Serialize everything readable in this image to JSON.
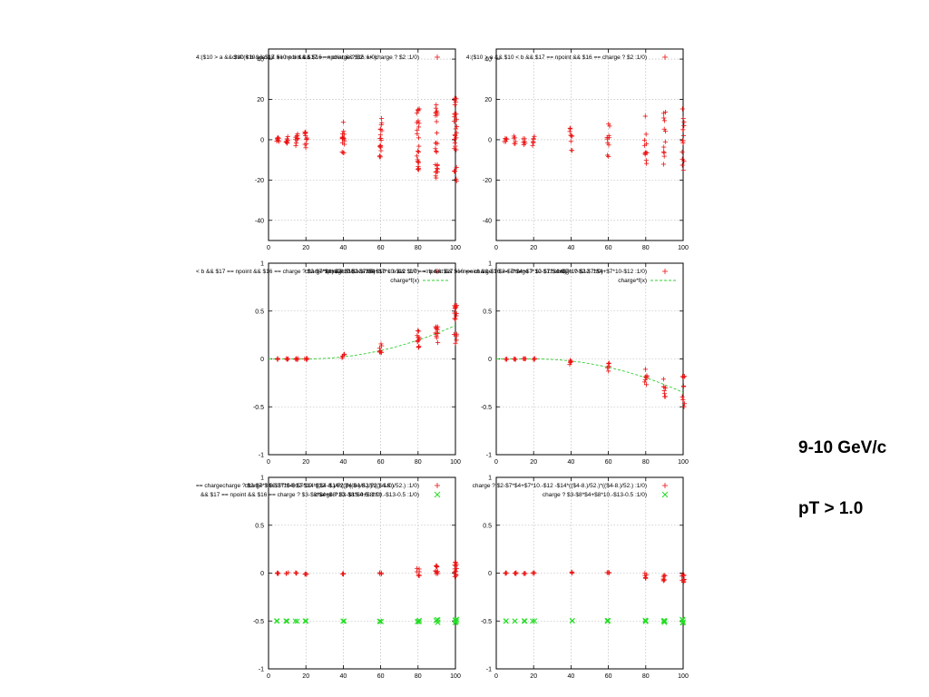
{
  "side_text": {
    "energy": "9-10 GeV/c",
    "pt_cut": "pT > 1.0"
  },
  "colors": {
    "series_plus": "#ee1111",
    "series_cross": "#22dd22",
    "fit_line": "#33cc33",
    "grid": "#b0b0b0",
    "frame": "#000000"
  },
  "chart_data": [
    {
      "type": "scatter",
      "xlim": [
        0,
        100
      ],
      "ylim": [
        -50,
        45
      ],
      "xticks": [
        0,
        20,
        40,
        60,
        80,
        100
      ],
      "yticks": [
        -40,
        -20,
        0,
        20,
        40
      ],
      "grid": true,
      "legend_overlay": "4:($10 > a && $10 < b && $17 == npoint && $16 == charge ? $2 :1/0)",
      "legend_label": "ch4:($10 > a && $10 < b && $17 == npoint && $16 == charge ? $2 :1/0)",
      "series": [
        {
          "marker": "plus",
          "clusters": [
            {
              "x": 5,
              "center": 0,
              "spread": 1,
              "n": 8
            },
            {
              "x": 10,
              "center": 0,
              "spread": 2,
              "n": 9
            },
            {
              "x": 15,
              "center": 0,
              "spread": 3,
              "n": 10
            },
            {
              "x": 20,
              "center": 0,
              "spread": 4,
              "n": 11
            },
            {
              "x": 40,
              "center": 0,
              "spread": 9,
              "n": 16
            },
            {
              "x": 60,
              "center": 0,
              "spread": 11,
              "n": 18
            },
            {
              "x": 80,
              "center": 0,
              "spread": 16,
              "n": 24
            },
            {
              "x": 90,
              "center": 0,
              "spread": 19,
              "n": 26
            },
            {
              "x": 100,
              "center": 0,
              "spread": 21,
              "n": 28
            }
          ]
        }
      ]
    },
    {
      "type": "scatter",
      "xlim": [
        0,
        100
      ],
      "ylim": [
        -50,
        45
      ],
      "xticks": [
        0,
        20,
        40,
        60,
        80,
        100
      ],
      "yticks": [
        -40,
        -20,
        0,
        20,
        40
      ],
      "grid": true,
      "legend_label": "4:($10 > a && $10 < b && $17 == npoint && $16 == charge ? $2 :1/0)",
      "series": [
        {
          "marker": "plus",
          "clusters": [
            {
              "x": 5,
              "center": 0,
              "spread": 1,
              "n": 5
            },
            {
              "x": 10,
              "center": 0,
              "spread": 2,
              "n": 6
            },
            {
              "x": 15,
              "center": 0,
              "spread": 2.5,
              "n": 6
            },
            {
              "x": 20,
              "center": 0,
              "spread": 3,
              "n": 7
            },
            {
              "x": 40,
              "center": 0,
              "spread": 7,
              "n": 9
            },
            {
              "x": 60,
              "center": 0,
              "spread": 9,
              "n": 10
            },
            {
              "x": 80,
              "center": 0,
              "spread": 12,
              "n": 12
            },
            {
              "x": 90,
              "center": 0,
              "spread": 14,
              "n": 12
            },
            {
              "x": 100,
              "center": 0,
              "spread": 16,
              "n": 14
            }
          ]
        }
      ]
    },
    {
      "type": "scatter",
      "xlim": [
        0,
        100
      ],
      "ylim": [
        -1,
        1
      ],
      "xticks": [
        0,
        20,
        40,
        60,
        80,
        100
      ],
      "yticks": [
        -1,
        -0.5,
        0,
        0.5,
        1
      ],
      "grid": true,
      "legend_overlay": "< b && $17 == npoint && $16 == charge ? $2-$7*$4+$7*10-$12 :1/0)",
      "legend_label": "charge ? $2-$7*$4+$7*10-$12 :1/0)",
      "legend_overlay_3": "charge*f(x) && $10 > a && $10 < b && $17 == npoint && $16 == charge ? $2-$7*$4+$7*10-$12 :1/0)",
      "fit_label": "charge*f(x)",
      "fit": {
        "sign": 1,
        "x0": 20,
        "scale": 0.35
      },
      "series": [
        {
          "marker": "plus",
          "clusters": [
            {
              "x": 5,
              "center": 0,
              "spread": 0.005,
              "n": 5
            },
            {
              "x": 10,
              "center": 0,
              "spread": 0.006,
              "n": 5
            },
            {
              "x": 15,
              "center": 0,
              "spread": 0.006,
              "n": 5
            },
            {
              "x": 20,
              "center": 0,
              "spread": 0.007,
              "n": 5
            },
            {
              "x": 40,
              "center": 0.03,
              "spread": 0.025,
              "n": 6
            },
            {
              "x": 60,
              "center": 0.1,
              "spread": 0.06,
              "n": 8
            },
            {
              "x": 80,
              "center": 0.21,
              "spread": 0.11,
              "n": 12
            },
            {
              "x": 90,
              "center": 0.28,
              "spread": 0.13,
              "n": 12
            },
            {
              "x": 100,
              "center": 0.36,
              "spread": 0.2,
              "n": 16
            }
          ]
        }
      ]
    },
    {
      "type": "scatter",
      "xlim": [
        0,
        100
      ],
      "ylim": [
        -1,
        1
      ],
      "xticks": [
        0,
        20,
        40,
        60,
        80,
        100
      ],
      "yticks": [
        -1,
        -0.5,
        0,
        0.5,
        1
      ],
      "grid": true,
      "legend_overlay": "< b && $17 == npoint && $16 == charge ? $2-$7*$4+$7*10-$12 :1/0)",
      "legend_label": "charge ? $2-$7*$4+$7*10-$12 :1/0)",
      "fit_label": "charge*f(x)",
      "fit": {
        "sign": -1,
        "x0": 20,
        "scale": 0.35
      },
      "series": [
        {
          "marker": "plus",
          "clusters": [
            {
              "x": 5,
              "center": 0,
              "spread": 0.005,
              "n": 4
            },
            {
              "x": 10,
              "center": 0,
              "spread": 0.006,
              "n": 4
            },
            {
              "x": 15,
              "center": 0,
              "spread": 0.006,
              "n": 4
            },
            {
              "x": 20,
              "center": 0,
              "spread": 0.007,
              "n": 4
            },
            {
              "x": 40,
              "center": -0.03,
              "spread": 0.03,
              "n": 5
            },
            {
              "x": 60,
              "center": -0.1,
              "spread": 0.06,
              "n": 6
            },
            {
              "x": 80,
              "center": -0.2,
              "spread": 0.1,
              "n": 8
            },
            {
              "x": 90,
              "center": -0.3,
              "spread": 0.16,
              "n": 9
            },
            {
              "x": 100,
              "center": -0.37,
              "spread": 0.22,
              "n": 10
            }
          ]
        }
      ]
    },
    {
      "type": "scatter",
      "xlim": [
        0,
        100
      ],
      "ylim": [
        -1,
        1
      ],
      "xticks": [
        0,
        20,
        40,
        60,
        80,
        100
      ],
      "yticks": [
        -1,
        -0.5,
        0,
        0.5,
        1
      ],
      "grid": true,
      "legend_overlay": "== chargecharge ? $2-$7*$4+$7*10-$12-$14*(($4-8.)/52.)*(($4-8.)/52.) :1/0)",
      "legend_label": "charge ? $2-$7*$4+$7*10.-$12 -$14*(($4-8.)/52.)*(($4-8.)/52.) :1/0)",
      "legend_overlay_2": "&& $17 == npoint && $16 == charge ? $3-$8*$4+$8*10.-$13-0.5 :1/0)",
      "legend_label_2": "charge ? $3-$8*$4+$8*10.-$13-0.5 :1/0)",
      "series": [
        {
          "marker": "plus",
          "clusters": [
            {
              "x": 5,
              "center": 0,
              "spread": 0.005,
              "n": 4
            },
            {
              "x": 10,
              "center": 0,
              "spread": 0.006,
              "n": 4
            },
            {
              "x": 15,
              "center": 0,
              "spread": 0.006,
              "n": 4
            },
            {
              "x": 20,
              "center": -0.01,
              "spread": 0.007,
              "n": 4
            },
            {
              "x": 40,
              "center": -0.01,
              "spread": 0.01,
              "n": 4
            },
            {
              "x": 60,
              "center": 0,
              "spread": 0.012,
              "n": 4
            },
            {
              "x": 80,
              "center": 0.01,
              "spread": 0.04,
              "n": 8
            },
            {
              "x": 90,
              "center": 0.02,
              "spread": 0.06,
              "n": 10
            },
            {
              "x": 100,
              "center": 0.04,
              "spread": 0.09,
              "n": 14
            }
          ]
        },
        {
          "marker": "cross",
          "clusters": [
            {
              "x": 5,
              "center": -0.5,
              "spread": 0.003,
              "n": 2
            },
            {
              "x": 10,
              "center": -0.5,
              "spread": 0.003,
              "n": 2
            },
            {
              "x": 15,
              "center": -0.5,
              "spread": 0.003,
              "n": 2
            },
            {
              "x": 20,
              "center": -0.5,
              "spread": 0.003,
              "n": 2
            },
            {
              "x": 40,
              "center": -0.5,
              "spread": 0.004,
              "n": 2
            },
            {
              "x": 60,
              "center": -0.5,
              "spread": 0.006,
              "n": 3
            },
            {
              "x": 80,
              "center": -0.5,
              "spread": 0.012,
              "n": 4
            },
            {
              "x": 90,
              "center": -0.5,
              "spread": 0.015,
              "n": 5
            },
            {
              "x": 100,
              "center": -0.5,
              "spread": 0.02,
              "n": 6
            }
          ]
        }
      ]
    },
    {
      "type": "scatter",
      "xlim": [
        0,
        100
      ],
      "ylim": [
        -1,
        1
      ],
      "xticks": [
        0,
        20,
        40,
        60,
        80,
        100
      ],
      "yticks": [
        -1,
        -0.5,
        0,
        0.5,
        1
      ],
      "grid": true,
      "legend_label": "charge ? $2-$7*$4+$7*10.-$12 -$14*(($4-8.)/52.)*(($4-8.)/52.) :1/0)",
      "legend_label_2": "charge ? $3-$8*$4+$8*10.-$13-0.5 :1/0)",
      "series": [
        {
          "marker": "plus",
          "clusters": [
            {
              "x": 5,
              "center": 0,
              "spread": 0.005,
              "n": 4
            },
            {
              "x": 10,
              "center": 0,
              "spread": 0.006,
              "n": 4
            },
            {
              "x": 15,
              "center": 0,
              "spread": 0.006,
              "n": 4
            },
            {
              "x": 20,
              "center": 0,
              "spread": 0.007,
              "n": 4
            },
            {
              "x": 40,
              "center": 0.01,
              "spread": 0.012,
              "n": 4
            },
            {
              "x": 60,
              "center": 0,
              "spread": 0.01,
              "n": 4
            },
            {
              "x": 80,
              "center": -0.03,
              "spread": 0.035,
              "n": 6
            },
            {
              "x": 90,
              "center": -0.05,
              "spread": 0.04,
              "n": 7
            },
            {
              "x": 100,
              "center": -0.06,
              "spread": 0.06,
              "n": 10
            }
          ]
        },
        {
          "marker": "cross",
          "clusters": [
            {
              "x": 5,
              "center": -0.5,
              "spread": 0.003,
              "n": 2
            },
            {
              "x": 10,
              "center": -0.5,
              "spread": 0.003,
              "n": 2
            },
            {
              "x": 15,
              "center": -0.5,
              "spread": 0.003,
              "n": 2
            },
            {
              "x": 20,
              "center": -0.5,
              "spread": 0.003,
              "n": 2
            },
            {
              "x": 40,
              "center": -0.5,
              "spread": 0.004,
              "n": 2
            },
            {
              "x": 60,
              "center": -0.5,
              "spread": 0.006,
              "n": 3
            },
            {
              "x": 80,
              "center": -0.5,
              "spread": 0.012,
              "n": 4
            },
            {
              "x": 90,
              "center": -0.5,
              "spread": 0.015,
              "n": 5
            },
            {
              "x": 100,
              "center": -0.5,
              "spread": 0.02,
              "n": 6
            }
          ]
        }
      ]
    }
  ]
}
